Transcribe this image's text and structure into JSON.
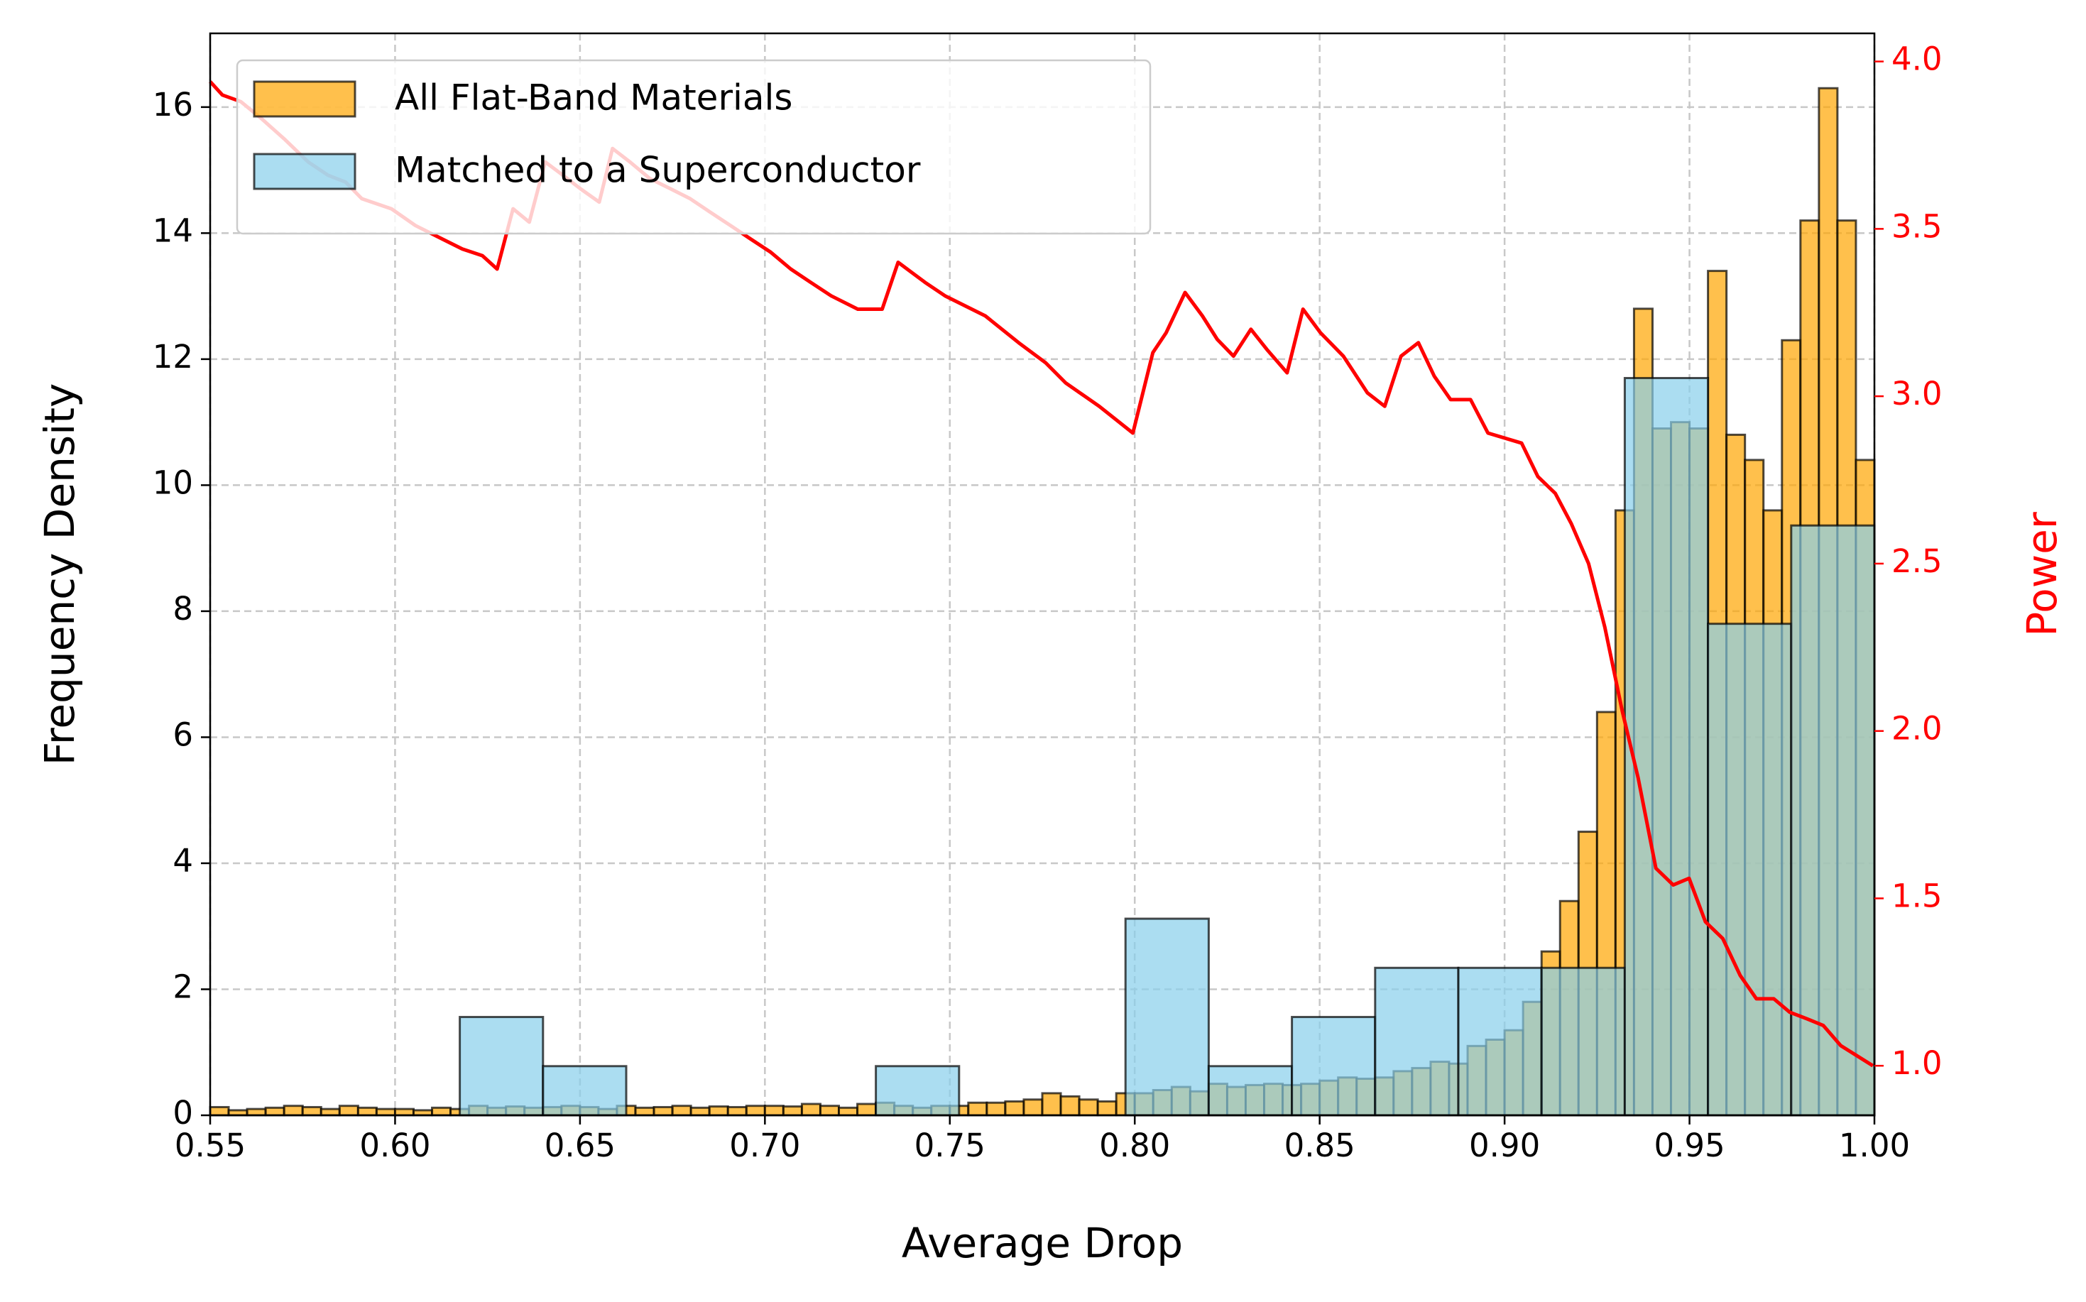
{
  "chart_data": {
    "type": "histogram",
    "xlabel": "Average Drop",
    "ylabel": "Frequency Density",
    "y2label": "Power",
    "xlim": [
      0.55,
      1.0
    ],
    "ylim": [
      0,
      17.17
    ],
    "y2lim": [
      0.852,
      4.084
    ],
    "xticks": [
      {
        "value": 0.55,
        "label": "0.55"
      },
      {
        "value": 0.6,
        "label": "0.60"
      },
      {
        "value": 0.65,
        "label": "0.65"
      },
      {
        "value": 0.7,
        "label": "0.70"
      },
      {
        "value": 0.75,
        "label": "0.75"
      },
      {
        "value": 0.8,
        "label": "0.80"
      },
      {
        "value": 0.85,
        "label": "0.85"
      },
      {
        "value": 0.9,
        "label": "0.90"
      },
      {
        "value": 0.95,
        "label": "0.95"
      },
      {
        "value": 1.0,
        "label": "1.00"
      }
    ],
    "yticks": [
      0,
      2,
      4,
      6,
      8,
      10,
      12,
      14,
      16
    ],
    "y2ticks": [
      {
        "value": 1.0,
        "label": "1.0"
      },
      1.5,
      {
        "value": 2.0,
        "label": "2.0"
      },
      2.5,
      {
        "value": 3.0,
        "label": "3.0"
      },
      3.5,
      {
        "value": 4.0,
        "label": "4.0"
      }
    ],
    "grid": true,
    "legend": "upper left",
    "series": [
      {
        "name": "All Flat-Band Materials",
        "type": "histogram",
        "color": "#ffa500",
        "bins": [
          0.55,
          0.555,
          0.56,
          0.565,
          0.57,
          0.575,
          0.58,
          0.585,
          0.59,
          0.595,
          0.6,
          0.605,
          0.61,
          0.615,
          0.62,
          0.625,
          0.63,
          0.635,
          0.64,
          0.645,
          0.65,
          0.655,
          0.66,
          0.665,
          0.67,
          0.675,
          0.68,
          0.685,
          0.69,
          0.695,
          0.7,
          0.705,
          0.71,
          0.715,
          0.72,
          0.725,
          0.73,
          0.735,
          0.74,
          0.745,
          0.75,
          0.755,
          0.76,
          0.765,
          0.77,
          0.775,
          0.78,
          0.785,
          0.79,
          0.795,
          0.8,
          0.805,
          0.81,
          0.815,
          0.82,
          0.825,
          0.83,
          0.835,
          0.84,
          0.845,
          0.85,
          0.855,
          0.86,
          0.865,
          0.87,
          0.875,
          0.88,
          0.885,
          0.89,
          0.895,
          0.9,
          0.905,
          0.91,
          0.915,
          0.92,
          0.925,
          0.93,
          0.935,
          0.94,
          0.945,
          0.95,
          0.955,
          0.96,
          0.965,
          0.97,
          0.975,
          0.98,
          0.985,
          0.99,
          0.995,
          1.0
        ],
        "values": [
          0.13,
          0.08,
          0.1,
          0.12,
          0.15,
          0.13,
          0.1,
          0.15,
          0.12,
          0.1,
          0.1,
          0.08,
          0.12,
          0.1,
          0.15,
          0.12,
          0.14,
          0.12,
          0.13,
          0.15,
          0.13,
          0.1,
          0.15,
          0.12,
          0.13,
          0.15,
          0.12,
          0.14,
          0.13,
          0.15,
          0.15,
          0.14,
          0.18,
          0.15,
          0.12,
          0.18,
          0.2,
          0.15,
          0.12,
          0.15,
          0.15,
          0.2,
          0.2,
          0.22,
          0.25,
          0.35,
          0.3,
          0.25,
          0.22,
          0.35,
          0.35,
          0.4,
          0.45,
          0.38,
          0.5,
          0.45,
          0.48,
          0.5,
          0.48,
          0.5,
          0.55,
          0.6,
          0.58,
          0.6,
          0.7,
          0.75,
          0.85,
          0.82,
          1.1,
          1.2,
          1.35,
          1.8,
          2.6,
          3.4,
          4.5,
          6.4,
          9.6,
          12.8,
          10.9,
          11.0,
          10.9,
          13.4,
          10.8,
          10.4,
          9.6,
          12.3,
          14.2,
          16.3,
          14.2,
          10.4
        ]
      },
      {
        "name": "Matched to a Superconductor",
        "type": "histogram",
        "color": "#87ceeb",
        "bins": [
          0.55,
          0.5725,
          0.595,
          0.6175,
          0.64,
          0.6625,
          0.685,
          0.7075,
          0.73,
          0.7525,
          0.775,
          0.7975,
          0.82,
          0.8425,
          0.865,
          0.8875,
          0.91,
          0.9325,
          0.955,
          0.9775,
          1.0
        ],
        "values": [
          0,
          0,
          0,
          1.56,
          0.78,
          0,
          0,
          0,
          0.78,
          0,
          0,
          3.12,
          0.78,
          1.56,
          2.34,
          2.34,
          2.34,
          11.7,
          7.8,
          9.36
        ]
      },
      {
        "type": "line",
        "axis": "y2",
        "color": "#ff0000",
        "x": [
          0.55,
          0.5533,
          0.5583,
          0.5638,
          0.5699,
          0.5765,
          0.5819,
          0.5866,
          0.591,
          0.599,
          0.6055,
          0.6127,
          0.6182,
          0.6236,
          0.6276,
          0.6319,
          0.6363,
          0.6406,
          0.6454,
          0.6501,
          0.6552,
          0.6588,
          0.6635,
          0.6689,
          0.6744,
          0.6798,
          0.6852,
          0.6907,
          0.6961,
          0.7016,
          0.707,
          0.7124,
          0.7179,
          0.7251,
          0.7317,
          0.736,
          0.7433,
          0.7487,
          0.7596,
          0.7686,
          0.7759,
          0.7813,
          0.7904,
          0.7995,
          0.8049,
          0.8085,
          0.8136,
          0.8183,
          0.8223,
          0.8267,
          0.8314,
          0.8357,
          0.8412,
          0.8455,
          0.8502,
          0.8564,
          0.8629,
          0.8676,
          0.872,
          0.8767,
          0.881,
          0.8854,
          0.8908,
          0.8955,
          0.9046,
          0.909,
          0.9137,
          0.918,
          0.9227,
          0.9271,
          0.9318,
          0.9361,
          0.9409,
          0.9456,
          0.9499,
          0.9543,
          0.959,
          0.9637,
          0.9681,
          0.9728,
          0.9771,
          0.9818,
          0.9862,
          0.9909,
          0.9996
        ],
        "values": [
          3.94,
          3.9,
          3.88,
          3.83,
          3.77,
          3.7,
          3.66,
          3.64,
          3.59,
          3.56,
          3.51,
          3.47,
          3.44,
          3.42,
          3.38,
          3.56,
          3.52,
          3.7,
          3.66,
          3.62,
          3.58,
          3.74,
          3.7,
          3.65,
          3.62,
          3.59,
          3.55,
          3.51,
          3.47,
          3.43,
          3.38,
          3.34,
          3.3,
          3.26,
          3.26,
          3.4,
          3.34,
          3.3,
          3.24,
          3.16,
          3.1,
          3.04,
          2.97,
          2.89,
          3.13,
          3.19,
          3.31,
          3.24,
          3.17,
          3.12,
          3.2,
          3.14,
          3.07,
          3.26,
          3.19,
          3.12,
          3.01,
          2.97,
          3.12,
          3.16,
          3.06,
          2.99,
          2.99,
          2.89,
          2.86,
          2.76,
          2.71,
          2.62,
          2.5,
          2.31,
          2.06,
          1.86,
          1.59,
          1.54,
          1.56,
          1.43,
          1.38,
          1.27,
          1.2,
          1.2,
          1.16,
          1.14,
          1.12,
          1.06,
          1.0
        ]
      }
    ]
  }
}
